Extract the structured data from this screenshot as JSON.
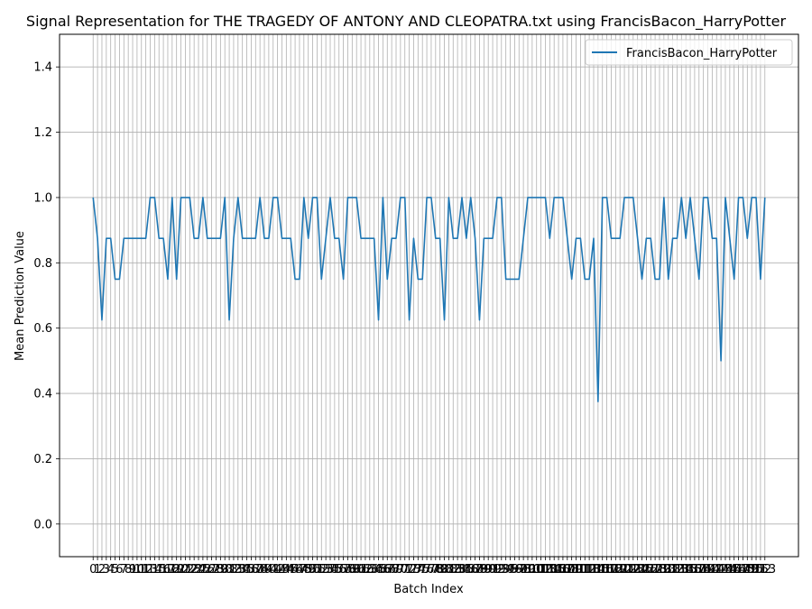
{
  "chart_data": {
    "type": "line",
    "title": "Signal Representation for THE TRAGEDY OF ANTONY AND CLEOPATRA.txt using FrancisBacon_HarryPotter",
    "xlabel": "Batch Index",
    "ylabel": "Mean Prediction Value",
    "ylim": [
      -0.1,
      1.5
    ],
    "yticks": [
      0.0,
      0.2,
      0.4,
      0.6,
      0.8,
      1.0,
      1.2,
      1.4
    ],
    "grid": true,
    "legend_position": "top-right",
    "x": [
      0,
      1,
      2,
      3,
      4,
      5,
      6,
      7,
      8,
      9,
      10,
      11,
      12,
      13,
      14,
      15,
      16,
      17,
      18,
      19,
      20,
      21,
      22,
      23,
      24,
      25,
      26,
      27,
      28,
      29,
      30,
      31,
      32,
      33,
      34,
      35,
      36,
      37,
      38,
      39,
      40,
      41,
      42,
      43,
      44,
      45,
      46,
      47,
      48,
      49,
      50,
      51,
      52,
      53,
      54,
      55,
      56,
      57,
      58,
      59,
      60,
      61,
      62,
      63,
      64,
      65,
      66,
      67,
      68,
      69,
      70,
      71,
      72,
      73,
      74,
      75,
      76,
      77,
      78,
      79,
      80,
      81,
      82,
      83,
      84,
      85,
      86,
      87,
      88,
      89,
      90,
      91,
      92,
      93,
      94,
      95,
      96,
      97,
      98,
      99,
      100,
      101,
      102,
      103,
      104,
      105,
      106,
      107,
      108,
      109,
      110,
      111,
      112,
      113,
      114,
      115,
      116,
      117,
      118,
      119,
      120,
      121,
      122,
      123,
      124,
      125,
      126,
      127,
      128,
      129,
      130,
      131,
      132,
      133,
      134,
      135,
      136,
      137,
      138,
      139,
      140,
      141,
      142,
      143,
      144,
      145,
      146,
      147,
      148,
      149,
      150,
      151,
      152,
      153
    ],
    "series": [
      {
        "name": "FrancisBacon_HarryPotter",
        "color": "#1f77b4",
        "values": [
          1.0,
          0.875,
          0.625,
          0.875,
          0.875,
          0.75,
          0.75,
          0.875,
          0.875,
          0.875,
          0.875,
          0.875,
          0.875,
          1.0,
          1.0,
          0.875,
          0.875,
          0.75,
          1.0,
          0.75,
          1.0,
          1.0,
          1.0,
          0.875,
          0.875,
          1.0,
          0.875,
          0.875,
          0.875,
          0.875,
          1.0,
          0.625,
          0.875,
          1.0,
          0.875,
          0.875,
          0.875,
          0.875,
          1.0,
          0.875,
          0.875,
          1.0,
          1.0,
          0.875,
          0.875,
          0.875,
          0.75,
          0.75,
          1.0,
          0.875,
          1.0,
          1.0,
          0.75,
          0.875,
          1.0,
          0.875,
          0.875,
          0.75,
          1.0,
          1.0,
          1.0,
          0.875,
          0.875,
          0.875,
          0.875,
          0.625,
          1.0,
          0.75,
          0.875,
          0.875,
          1.0,
          1.0,
          0.625,
          0.875,
          0.75,
          0.75,
          1.0,
          1.0,
          0.875,
          0.875,
          0.625,
          1.0,
          0.875,
          0.875,
          1.0,
          0.875,
          1.0,
          0.875,
          0.625,
          0.875,
          0.875,
          0.875,
          1.0,
          1.0,
          0.75,
          0.75,
          0.75,
          0.75,
          0.875,
          1.0,
          1.0,
          1.0,
          1.0,
          1.0,
          0.875,
          1.0,
          1.0,
          1.0,
          0.875,
          0.75,
          0.875,
          0.875,
          0.75,
          0.75,
          0.875,
          0.375,
          1.0,
          1.0,
          0.875,
          0.875,
          0.875,
          1.0,
          1.0,
          1.0,
          0.875,
          0.75,
          0.875,
          0.875,
          0.75,
          0.75,
          1.0,
          0.75,
          0.875,
          0.875,
          1.0,
          0.875,
          1.0,
          0.875,
          0.75,
          1.0,
          1.0,
          0.875,
          0.875,
          0.5,
          1.0,
          0.875,
          0.75,
          1.0,
          1.0,
          0.875,
          1.0,
          1.0,
          0.75,
          1.0
        ]
      }
    ]
  }
}
